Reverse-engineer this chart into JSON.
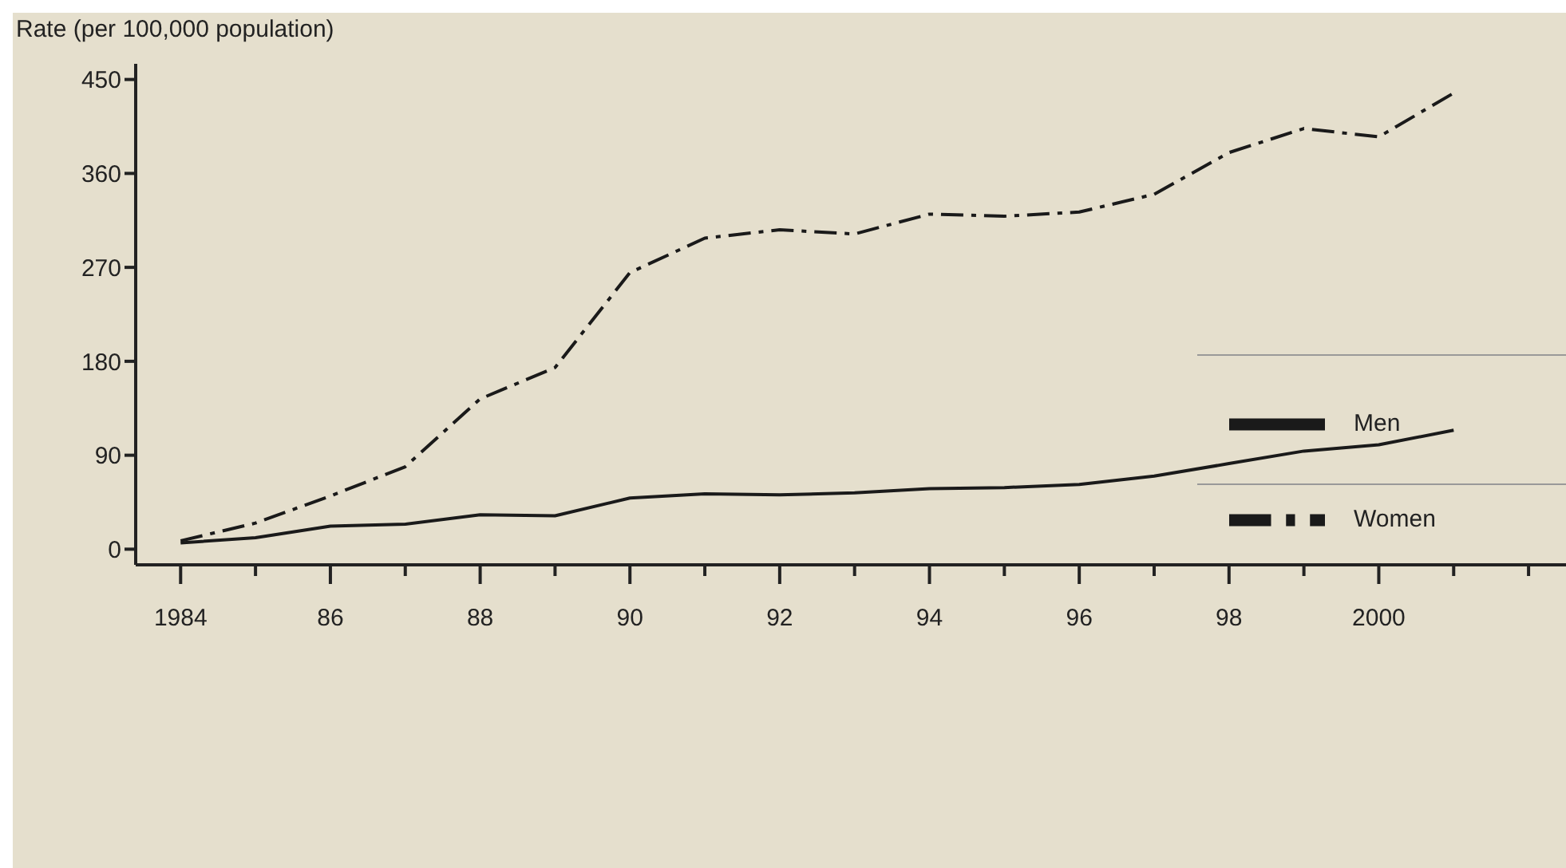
{
  "chart_data": {
    "type": "line",
    "ylabel": "Rate (per 100,000 population)",
    "x": [
      1984,
      1985,
      1986,
      1987,
      1988,
      1989,
      1990,
      1991,
      1992,
      1993,
      1994,
      1995,
      1996,
      1997,
      1998,
      1999,
      2000,
      2001
    ],
    "series": [
      {
        "name": "Men",
        "color": "#1a1a1a",
        "line_style": "solid",
        "values": [
          6,
          11,
          22,
          24,
          33,
          32,
          49,
          53,
          52,
          54,
          58,
          59,
          62,
          70,
          82,
          94,
          100,
          114
        ]
      },
      {
        "name": "Women",
        "color": "#1a1a1a",
        "line_style": "dashed",
        "values": [
          8,
          25,
          51,
          79,
          144,
          174,
          265,
          298,
          306,
          302,
          321,
          319,
          323,
          340,
          380,
          403,
          395,
          437
        ]
      }
    ],
    "xlim": [
      1983.4,
      2002.5
    ],
    "xticks": [
      {
        "value": 1984,
        "label": "1984"
      },
      {
        "value": 1985,
        "label": null
      },
      {
        "value": 1986,
        "label": "86"
      },
      {
        "value": 1987,
        "label": null
      },
      {
        "value": 1988,
        "label": "88"
      },
      {
        "value": 1989,
        "label": null
      },
      {
        "value": 1990,
        "label": "90"
      },
      {
        "value": 1991,
        "label": null
      },
      {
        "value": 1992,
        "label": "92"
      },
      {
        "value": 1993,
        "label": null
      },
      {
        "value": 1994,
        "label": "94"
      },
      {
        "value": 1995,
        "label": null
      },
      {
        "value": 1996,
        "label": "96"
      },
      {
        "value": 1997,
        "label": null
      },
      {
        "value": 1998,
        "label": "98"
      },
      {
        "value": 1999,
        "label": null
      },
      {
        "value": 2000,
        "label": "2000"
      },
      {
        "value": 2001,
        "label": null
      },
      {
        "value": 2002,
        "label": null
      }
    ],
    "ylim": [
      -15,
      465
    ],
    "yticks": [
      0,
      90,
      180,
      270,
      360,
      450
    ],
    "grid": false,
    "legend": "right",
    "marker": "none"
  }
}
